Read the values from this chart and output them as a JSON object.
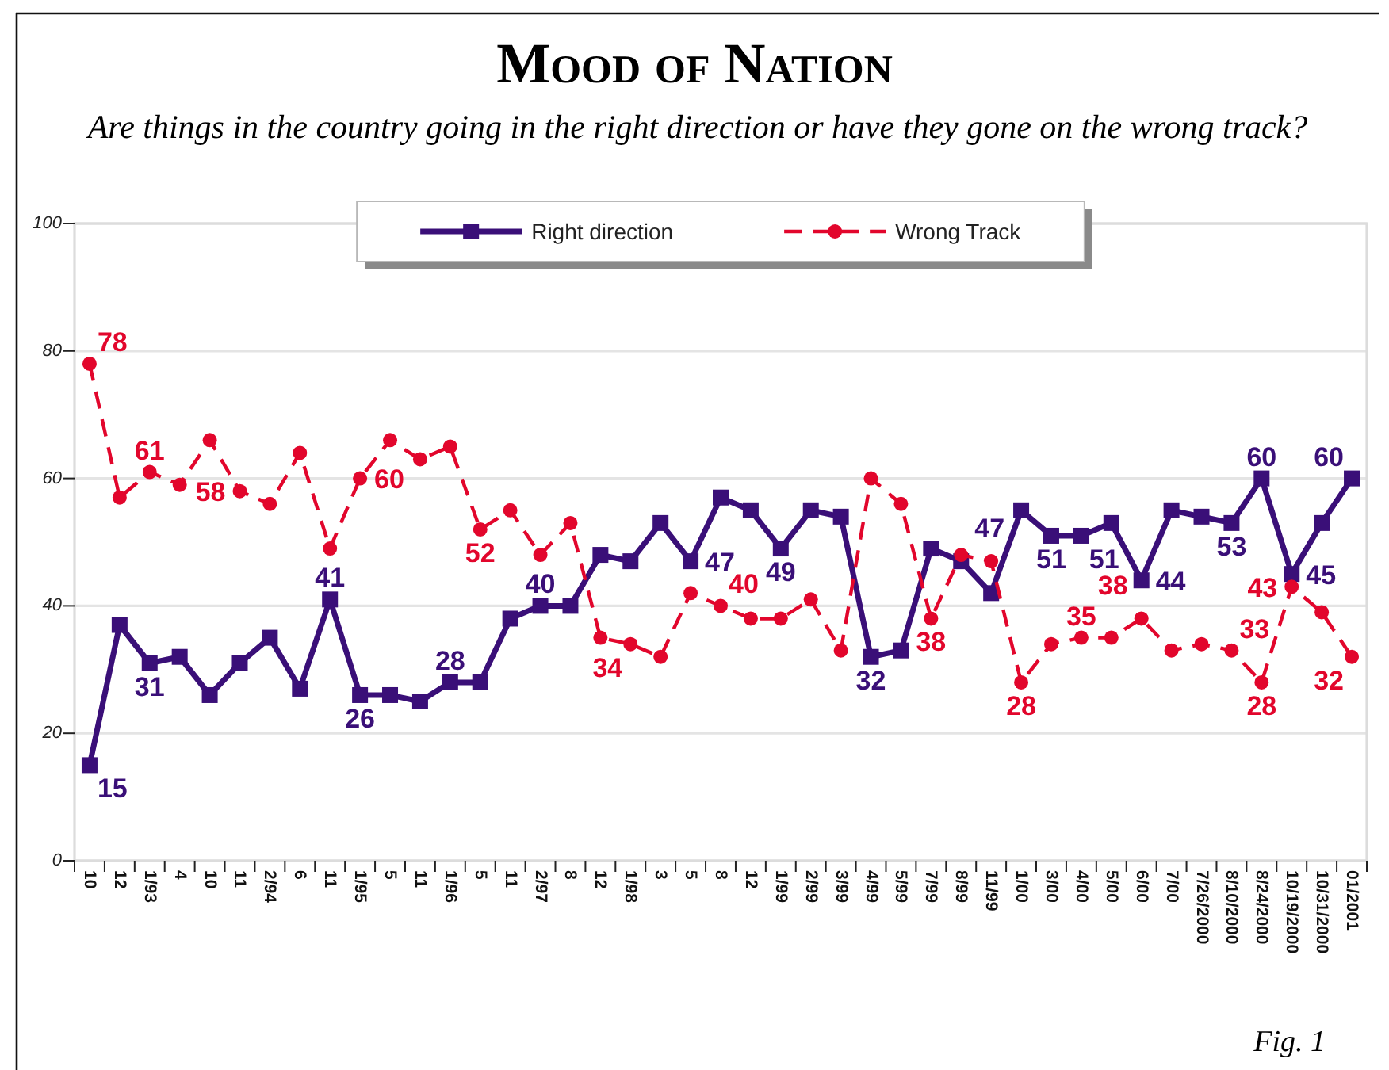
{
  "chart_data": {
    "type": "line",
    "title": "Mood of Nation",
    "subtitle": "Are things in the country going in the right direction or have they gone on the wrong track?",
    "categories": [
      "10",
      "12",
      "1/93",
      "4",
      "10",
      "11",
      "2/94",
      "6",
      "11",
      "1/95",
      "5",
      "11",
      "1/96",
      "5",
      "11",
      "2/97",
      "8",
      "12",
      "1/98",
      "3",
      "5",
      "8",
      "12",
      "1/99",
      "2/99",
      "3/99",
      "4/99",
      "5/99",
      "7/99",
      "8/99",
      "11/99",
      "1/00",
      "3/00",
      "4/00",
      "5/00",
      "6/00",
      "7/00",
      "7/26/2000",
      "8/10/2000",
      "8/24/2000",
      "10/19/2000",
      "10/31/2000",
      "01/2001"
    ],
    "series": [
      {
        "name": "Right direction",
        "color": "#3a0f78",
        "marker": "square",
        "line_style": "solid",
        "values": [
          15,
          37,
          31,
          32,
          26,
          31,
          35,
          27,
          41,
          26,
          26,
          25,
          28,
          28,
          38,
          40,
          40,
          48,
          47,
          53,
          47,
          57,
          55,
          49,
          55,
          54,
          32,
          33,
          49,
          47,
          42,
          55,
          51,
          51,
          53,
          44,
          55,
          54,
          53,
          60,
          45,
          53,
          60
        ],
        "value_labels": [
          "15",
          null,
          "31",
          null,
          null,
          null,
          null,
          null,
          "41",
          "26",
          null,
          null,
          "28",
          null,
          null,
          "40",
          null,
          null,
          null,
          null,
          "47",
          null,
          null,
          "49",
          null,
          null,
          "32",
          null,
          null,
          "47",
          null,
          null,
          "51",
          "51",
          null,
          "44",
          null,
          null,
          "53",
          "60",
          "45",
          null,
          "60"
        ]
      },
      {
        "name": "Wrong Track",
        "color": "#e2062c",
        "marker": "circle",
        "line_style": "dashed",
        "values": [
          78,
          57,
          61,
          59,
          66,
          58,
          56,
          64,
          49,
          60,
          66,
          63,
          65,
          52,
          55,
          48,
          53,
          35,
          34,
          32,
          42,
          40,
          38,
          38,
          41,
          33,
          60,
          56,
          38,
          48,
          47,
          28,
          34,
          35,
          35,
          38,
          33,
          34,
          33,
          28,
          43,
          39,
          32
        ],
        "value_labels": [
          "78",
          null,
          "61",
          null,
          null,
          "58",
          null,
          null,
          null,
          "60",
          null,
          null,
          null,
          "52",
          null,
          null,
          null,
          null,
          "34",
          null,
          null,
          "40",
          null,
          null,
          null,
          null,
          null,
          null,
          "38",
          null,
          null,
          "28",
          null,
          "35",
          null,
          "38",
          null,
          null,
          "33",
          "28",
          "43",
          null,
          "32"
        ]
      }
    ],
    "ylim": [
      0,
      100
    ],
    "yticks": [
      0,
      20,
      40,
      60,
      80,
      100
    ],
    "grid": "y",
    "legend": "top",
    "annotations": [
      "Fig. 1"
    ]
  }
}
